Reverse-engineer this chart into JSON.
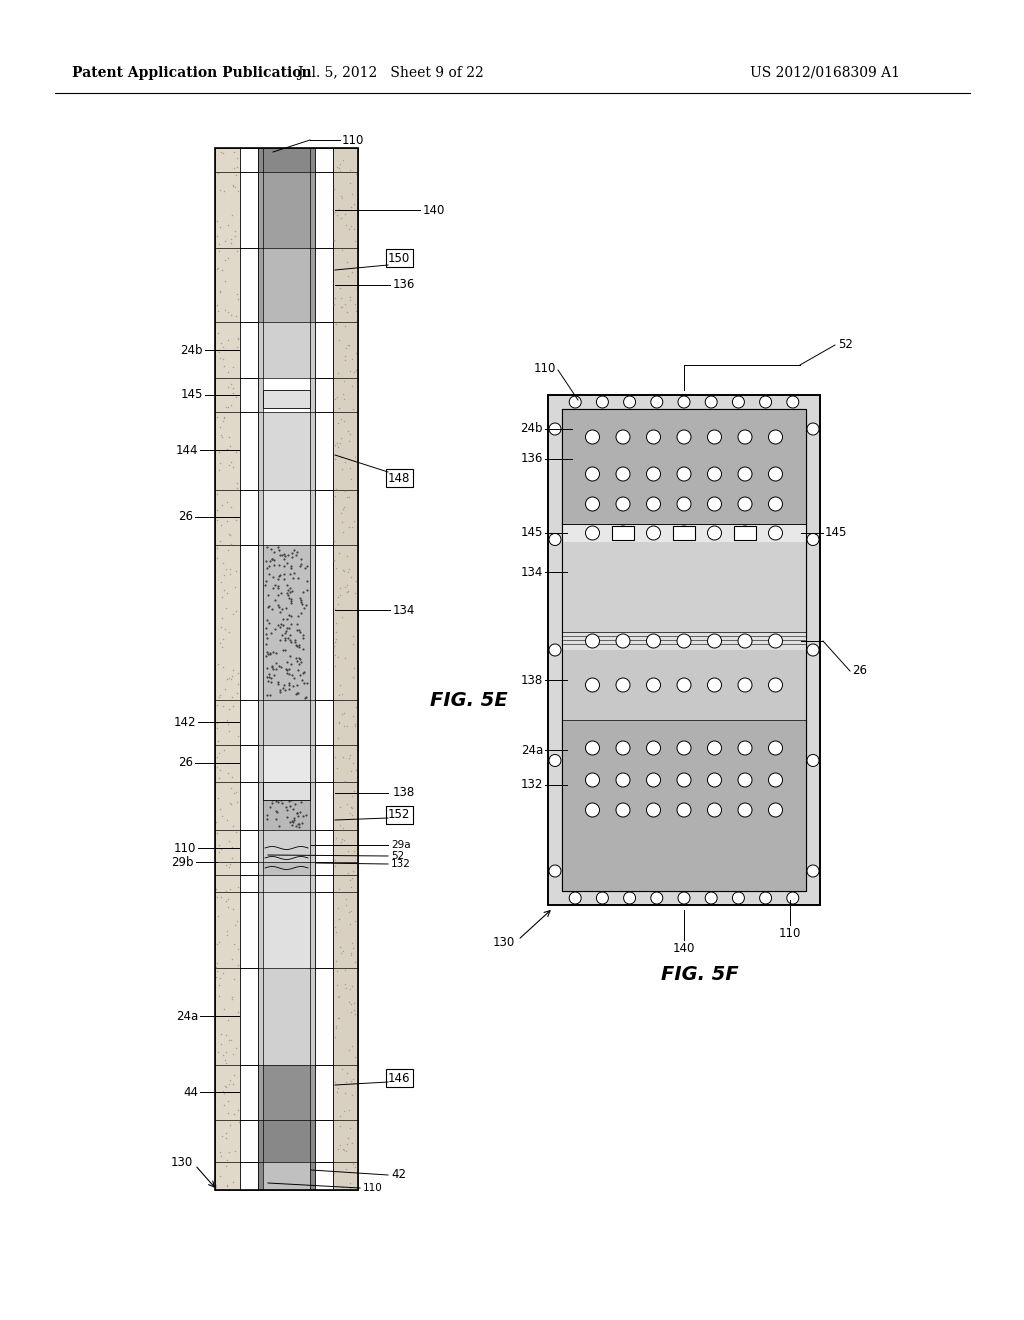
{
  "header_left": "Patent Application Publication",
  "header_center": "Jul. 5, 2012   Sheet 9 of 22",
  "header_right": "US 2012/0168309 A1",
  "fig5e_label": "FIG. 5E",
  "fig5f_label": "FIG. 5F",
  "bg_color": "#ffffff"
}
